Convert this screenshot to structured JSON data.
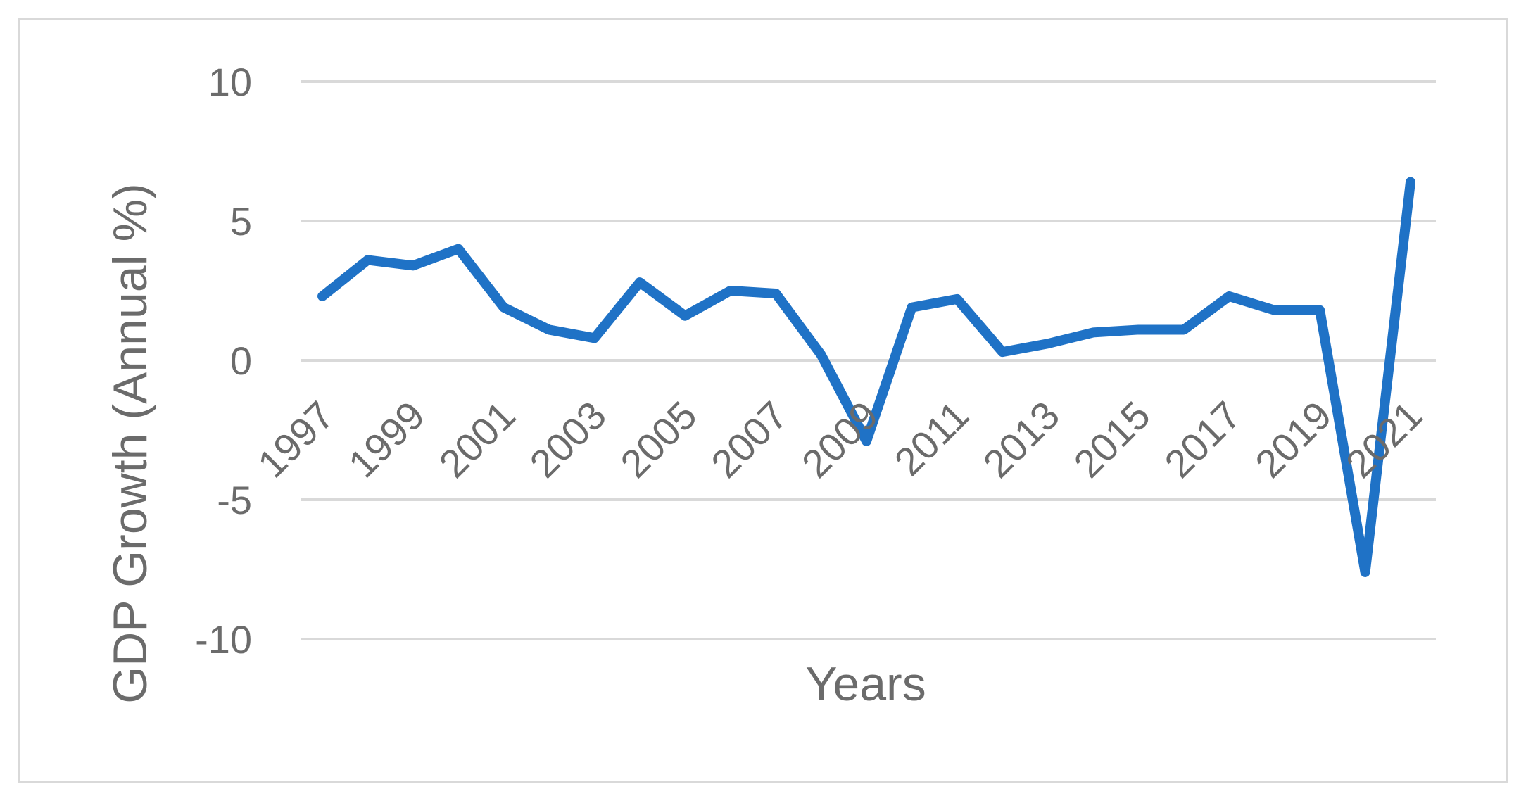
{
  "chart_data": {
    "type": "line",
    "title": "",
    "xlabel": "Years",
    "ylabel": "GDP Growth (Annual %)",
    "ylim": [
      -10,
      10
    ],
    "yticks": [
      -10,
      -5,
      0,
      5,
      10
    ],
    "x": [
      1997,
      1998,
      1999,
      2000,
      2001,
      2002,
      2003,
      2004,
      2005,
      2006,
      2007,
      2008,
      2009,
      2010,
      2011,
      2012,
      2013,
      2014,
      2015,
      2016,
      2017,
      2018,
      2019,
      2020,
      2021
    ],
    "xtick_labels": [
      "1997",
      "1999",
      "2001",
      "2003",
      "2005",
      "2007",
      "2009",
      "2011",
      "2013",
      "2015",
      "2017",
      "2019",
      "2021"
    ],
    "grid": true,
    "legend": "none",
    "series": [
      {
        "color": "#1f72c6",
        "values": [
          2.3,
          3.6,
          3.4,
          4.0,
          1.9,
          1.1,
          0.8,
          2.8,
          1.6,
          2.5,
          2.4,
          0.2,
          -2.9,
          1.9,
          2.2,
          0.3,
          0.6,
          1.0,
          1.1,
          1.1,
          2.3,
          1.8,
          1.8,
          -7.6,
          6.4
        ]
      }
    ],
    "gridline_color": "#d9d9d9"
  }
}
